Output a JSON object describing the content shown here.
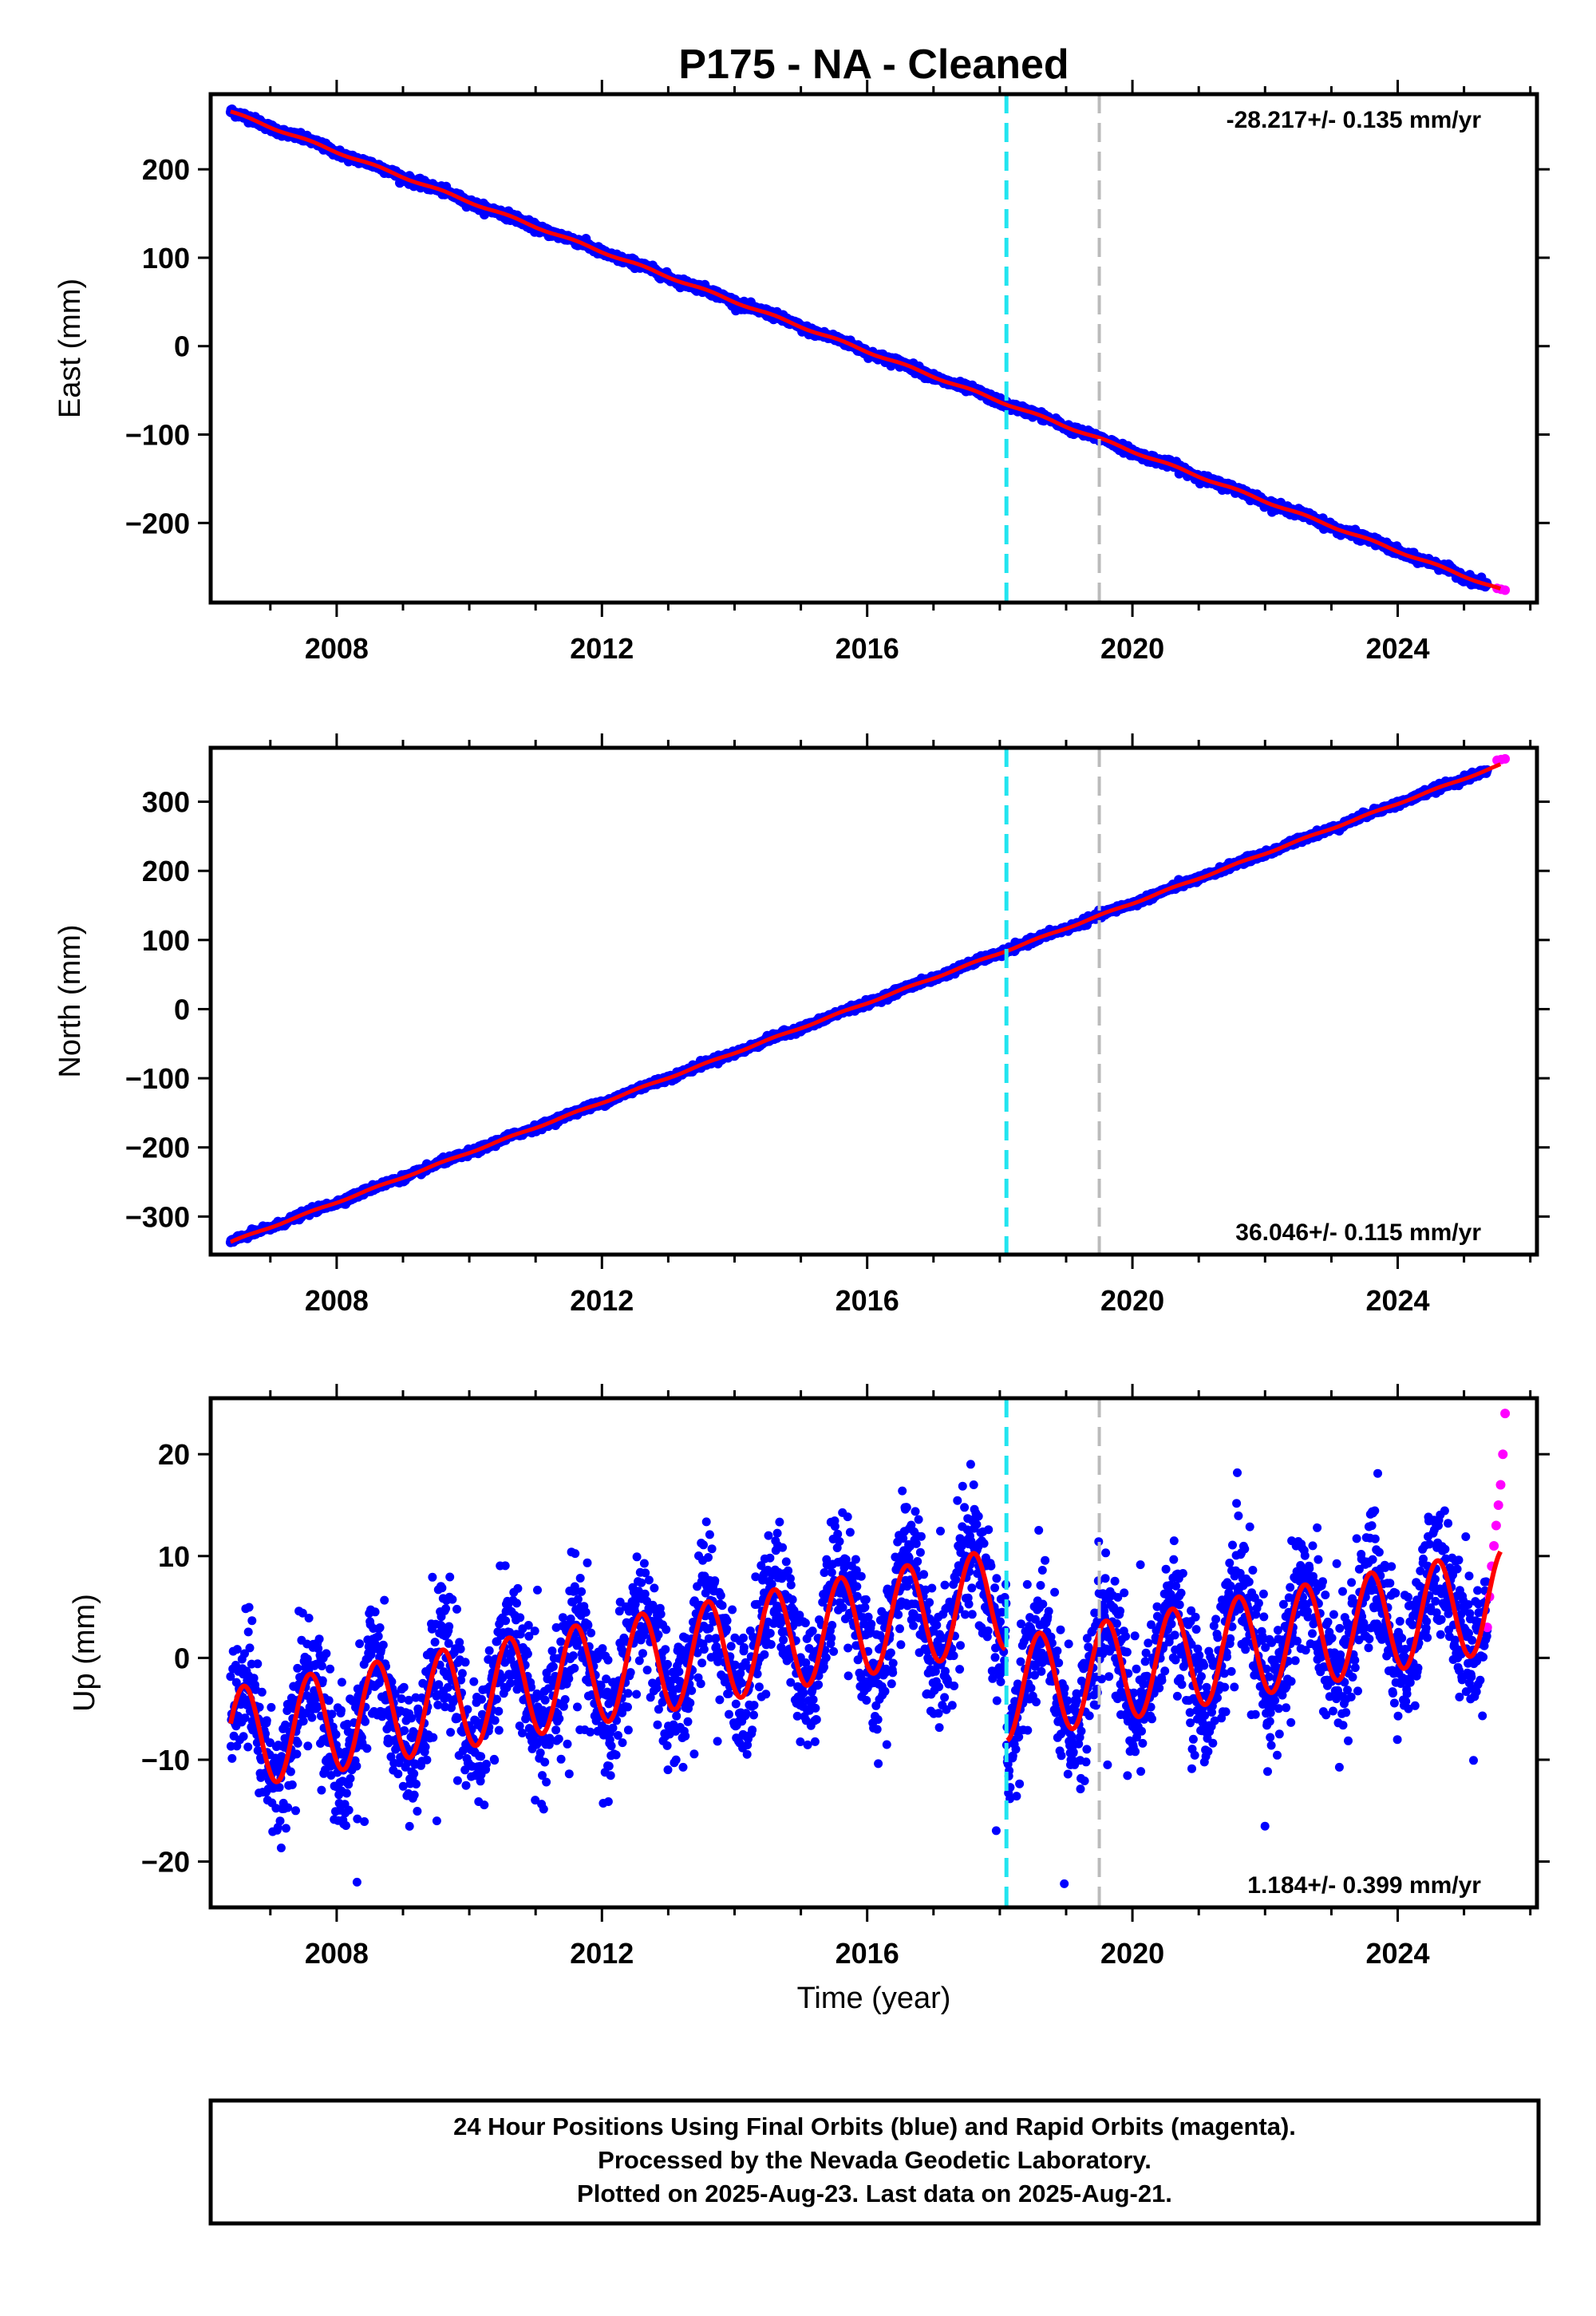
{
  "title": "P175  - NA - Cleaned",
  "colors": {
    "final_orbits": "#0000ff",
    "rapid_orbits": "#ff00ff",
    "model": "#ff0000",
    "vline_1": "#22e5f0",
    "vline_2": "#bbbbbb"
  },
  "x_axis": {
    "label": "Time (year)",
    "range": [
      2006.1,
      2026.1
    ],
    "ticks": [
      2008,
      2012,
      2016,
      2020,
      2024
    ],
    "minor_step": 1
  },
  "vertical_lines": [
    {
      "x": 2018.1,
      "color": "#22e5f0",
      "style": "dashed"
    },
    {
      "x": 2019.5,
      "color": "#bbbbbb",
      "style": "dashed"
    }
  ],
  "chart_data": [
    {
      "type": "scatter",
      "panel": "east",
      "ylabel": "East (mm)",
      "ylim": [
        -290,
        285
      ],
      "yticks": [
        -200,
        -100,
        0,
        100,
        200
      ],
      "rate_label": "-28.217+/- 0.135 mm/yr",
      "rate_position": "top-right",
      "trend": {
        "x0": 2006.4,
        "y0": 265,
        "slope": -28.217
      },
      "steps": [],
      "seasonal_amplitude": 1.2,
      "noise": 2.2,
      "x_start": 2006.4,
      "x_end": 2025.35,
      "rapid": {
        "x_start": 2025.5,
        "x_end": 2025.62,
        "values": [
          -274,
          -275,
          -276
        ]
      }
    },
    {
      "type": "scatter",
      "panel": "north",
      "ylabel": "North (mm)",
      "ylim": [
        -355,
        378
      ],
      "yticks": [
        -300,
        -200,
        -100,
        0,
        100,
        200,
        300
      ],
      "rate_label": "36.046+/- 0.115 mm/yr",
      "rate_position": "bottom-right",
      "trend": {
        "x0": 2006.4,
        "y0": -337,
        "slope": 36.046
      },
      "steps": [
        {
          "x": 2018.1,
          "dy": 0
        }
      ],
      "seasonal_amplitude": 1.0,
      "noise": 2.2,
      "x_start": 2006.4,
      "x_end": 2025.35,
      "rapid": {
        "x_start": 2025.5,
        "x_end": 2025.62,
        "values": [
          360,
          361,
          362
        ]
      }
    },
    {
      "type": "scatter",
      "panel": "up",
      "ylabel": "Up (mm)",
      "ylim": [
        -24.5,
        25.5
      ],
      "yticks": [
        -20,
        -10,
        0,
        10,
        20
      ],
      "rate_label": "1.184+/- 0.399 mm/yr",
      "rate_position": "bottom-right",
      "trend": {
        "x0": 2006.4,
        "y0": -8.0,
        "slope": 1.184
      },
      "steps": [
        {
          "x": 2018.1,
          "dy": -9.0
        }
      ],
      "seasonal_amplitude": 5.0,
      "noise": 3.2,
      "x_start": 2006.4,
      "x_end": 2025.35,
      "rapid": {
        "x_start": 2025.35,
        "x_end": 2025.62,
        "values": [
          3,
          6,
          9,
          11,
          13,
          15,
          17,
          20,
          24
        ]
      }
    }
  ],
  "footer": {
    "lines": [
      "24 Hour Positions Using Final Orbits (blue) and Rapid Orbits (magenta).",
      "Processed by the Nevada Geodetic Laboratory.",
      "Plotted on 2025-Aug-23. Last data on 2025-Aug-21."
    ]
  }
}
